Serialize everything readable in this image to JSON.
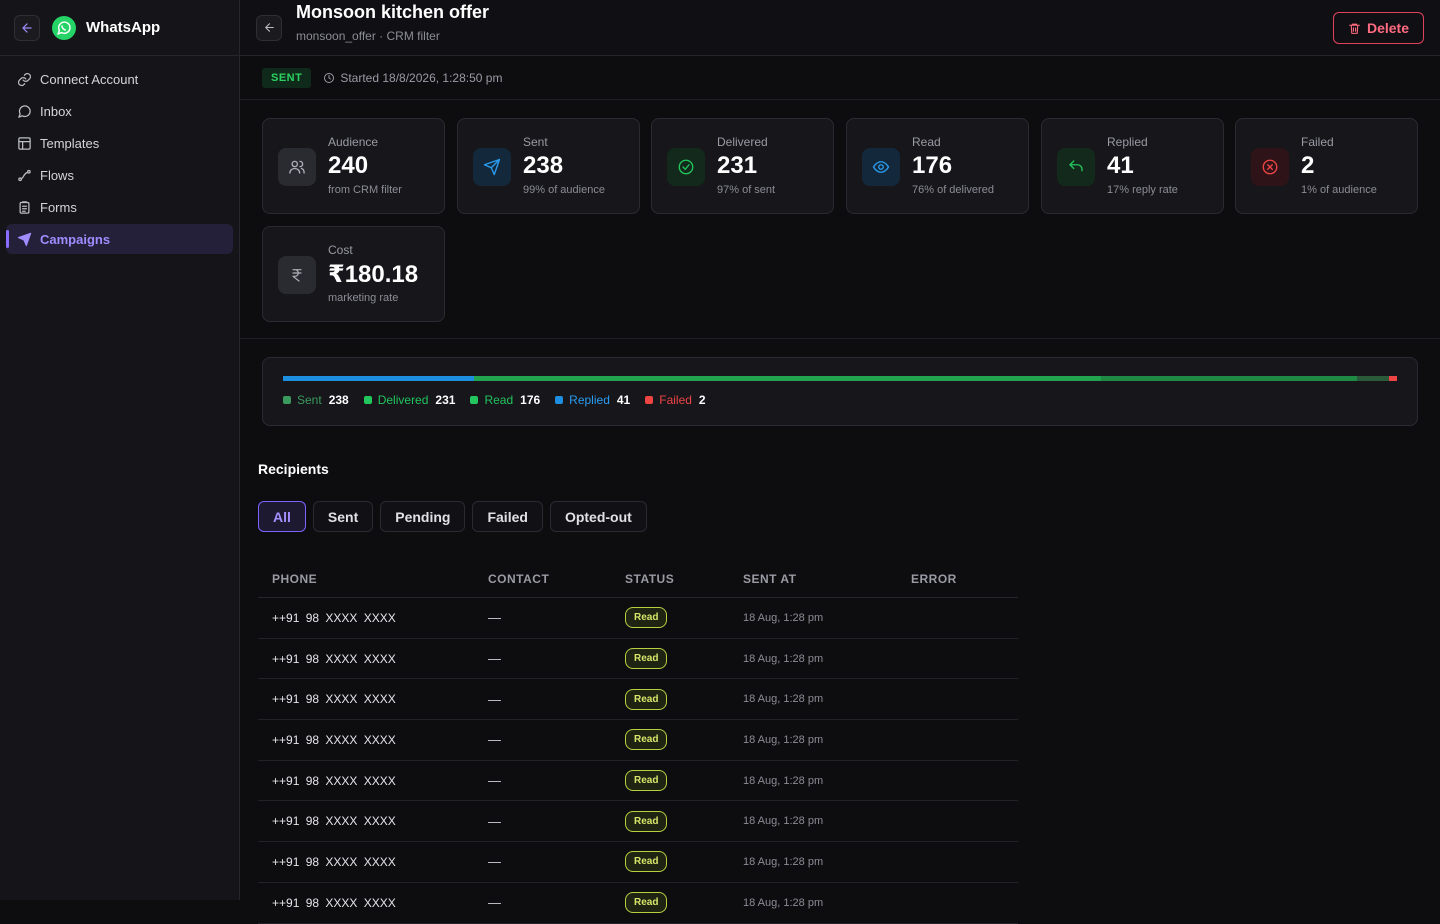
{
  "app": {
    "title": "WhatsApp",
    "accent": "#8a6cff",
    "brand": "#25d366"
  },
  "sidebar": {
    "items": [
      {
        "label": "Connect Account",
        "icon": "link-icon"
      },
      {
        "label": "Inbox",
        "icon": "chat-icon"
      },
      {
        "label": "Templates",
        "icon": "layout-icon"
      },
      {
        "label": "Flows",
        "icon": "flow-icon"
      },
      {
        "label": "Forms",
        "icon": "clipboard-icon"
      },
      {
        "label": "Campaigns",
        "icon": "send-icon",
        "active": true
      }
    ]
  },
  "header": {
    "title": "Monsoon kitchen offer",
    "subtitle": "monsoon_offer · CRM filter",
    "delete_label": "Delete"
  },
  "status": {
    "badge": "SENT",
    "started": "Started 18/8/2026, 1:28:50 pm"
  },
  "cards": [
    {
      "label": "Audience",
      "value": "240",
      "sub": "from CRM filter",
      "icon": "users-icon",
      "color": "#9a9aa4"
    },
    {
      "label": "Sent",
      "value": "238",
      "sub": "99% of audience",
      "icon": "send-icon",
      "color": "#2b9cf0"
    },
    {
      "label": "Delivered",
      "value": "231",
      "sub": "97% of sent",
      "icon": "check-circle-icon",
      "color": "#22c55e"
    },
    {
      "label": "Read",
      "value": "176",
      "sub": "76% of delivered",
      "icon": "eye-icon",
      "color": "#2b9cf0"
    },
    {
      "label": "Replied",
      "value": "41",
      "sub": "17% reply rate",
      "icon": "reply-icon",
      "color": "#22c55e"
    },
    {
      "label": "Failed",
      "value": "2",
      "sub": "1% of audience",
      "icon": "x-circle-icon",
      "color": "#ef4444"
    },
    {
      "label": "Cost",
      "value": "₹180.18",
      "sub": "marketing rate",
      "icon": "rupee-icon",
      "color": "#9a9aa4"
    }
  ],
  "progress": {
    "legend": [
      {
        "label": "Sent",
        "value": "238",
        "color": "#3b9a5e"
      },
      {
        "label": "Delivered",
        "value": "231",
        "color": "#22c55e"
      },
      {
        "label": "Read",
        "value": "176",
        "color": "#22c55e"
      },
      {
        "label": "Replied",
        "value": "41",
        "color": "#1d8ee0"
      },
      {
        "label": "Failed",
        "value": "2",
        "color": "#ef4444"
      }
    ]
  },
  "recipients": {
    "title": "Recipients",
    "tabs": [
      "All",
      "Sent",
      "Pending",
      "Failed",
      "Opted-out"
    ],
    "active_tab": "All",
    "columns": [
      "PHONE",
      "CONTACT",
      "STATUS",
      "SENT AT",
      "ERROR"
    ],
    "rows": [
      {
        "phone": "++91 98 XXXX XXXX",
        "contact": "—",
        "status": "Read",
        "sent_at": "18 Aug, 1:28 pm",
        "error": ""
      },
      {
        "phone": "++91 98 XXXX XXXX",
        "contact": "—",
        "status": "Read",
        "sent_at": "18 Aug, 1:28 pm",
        "error": ""
      },
      {
        "phone": "++91 98 XXXX XXXX",
        "contact": "—",
        "status": "Read",
        "sent_at": "18 Aug, 1:28 pm",
        "error": ""
      },
      {
        "phone": "++91 98 XXXX XXXX",
        "contact": "—",
        "status": "Read",
        "sent_at": "18 Aug, 1:28 pm",
        "error": ""
      },
      {
        "phone": "++91 98 XXXX XXXX",
        "contact": "—",
        "status": "Read",
        "sent_at": "18 Aug, 1:28 pm",
        "error": ""
      },
      {
        "phone": "++91 98 XXXX XXXX",
        "contact": "—",
        "status": "Read",
        "sent_at": "18 Aug, 1:28 pm",
        "error": ""
      },
      {
        "phone": "++91 98 XXXX XXXX",
        "contact": "—",
        "status": "Read",
        "sent_at": "18 Aug, 1:28 pm",
        "error": ""
      },
      {
        "phone": "++91 98 XXXX XXXX",
        "contact": "—",
        "status": "Read",
        "sent_at": "18 Aug, 1:28 pm",
        "error": ""
      }
    ]
  }
}
